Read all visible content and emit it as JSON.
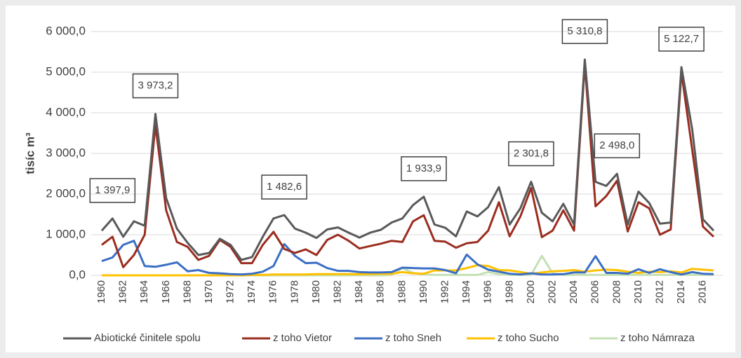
{
  "chart_data": {
    "type": "line",
    "ylabel": "tisíc m³",
    "categories": [
      "1960",
      null,
      "1962",
      null,
      "1964",
      null,
      "1966",
      null,
      "1968",
      null,
      "1970",
      null,
      "1972",
      null,
      "1974",
      null,
      "1976",
      null,
      "1978",
      null,
      "1980",
      null,
      "1982",
      null,
      "1984",
      null,
      "1986",
      null,
      "1988",
      null,
      "1990",
      null,
      "1992",
      null,
      "1994",
      null,
      "1996",
      null,
      "1998",
      null,
      "2000",
      null,
      "2002",
      null,
      "2004",
      null,
      "2006",
      null,
      "2008",
      null,
      "2010",
      null,
      "2012",
      null,
      "2014",
      null,
      "2016",
      null
    ],
    "ylim": [
      0,
      6000
    ],
    "yticks": [
      {
        "value": 0,
        "label": "0,0"
      },
      {
        "value": 1000,
        "label": "1 000,0"
      },
      {
        "value": 2000,
        "label": "2 000,0"
      },
      {
        "value": 3000,
        "label": "3 000,0"
      },
      {
        "value": 4000,
        "label": "4 000,0"
      },
      {
        "value": 5000,
        "label": "5 000,0"
      },
      {
        "value": 6000,
        "label": "6 000,0"
      }
    ],
    "grid": true,
    "legend": "bottom",
    "series": [
      {
        "name": "Abiotické činitele spolu",
        "color": "#595959",
        "values": [
          1100,
          1397.9,
          950,
          1330,
          1220,
          3973.2,
          1900,
          1150,
          800,
          500,
          550,
          900,
          750,
          380,
          450,
          950,
          1400,
          1482.6,
          1150,
          1050,
          920,
          1130,
          1180,
          1050,
          930,
          1050,
          1120,
          1300,
          1400,
          1730,
          1933.9,
          1250,
          1170,
          960,
          1570,
          1450,
          1680,
          2170,
          1250,
          1650,
          2301.8,
          1540,
          1330,
          1760,
          1250,
          5310.8,
          2300,
          2200,
          2498.0,
          1250,
          2060,
          1780,
          1270,
          1300,
          5122.7,
          3600,
          1380,
          1100
        ],
        "value_labels": [
          null,
          "1 397,9",
          null,
          null,
          null,
          "3 973,2",
          null,
          null,
          null,
          null,
          null,
          null,
          null,
          null,
          null,
          null,
          null,
          "1 482,6",
          null,
          null,
          null,
          null,
          null,
          null,
          null,
          null,
          null,
          null,
          null,
          null,
          "1 933,9",
          null,
          null,
          null,
          null,
          null,
          null,
          null,
          null,
          null,
          "2 301,8",
          null,
          null,
          null,
          null,
          "5 310,8",
          null,
          null,
          "2 498,0",
          null,
          null,
          null,
          null,
          null,
          "5 122,7",
          null,
          null,
          null
        ]
      },
      {
        "name": "z toho Vietor",
        "color": "#9b2d1f",
        "values": [
          750,
          950,
          200,
          500,
          1000,
          3700,
          1600,
          820,
          700,
          380,
          480,
          870,
          700,
          300,
          300,
          750,
          1070,
          650,
          550,
          640,
          500,
          870,
          1000,
          850,
          660,
          720,
          780,
          850,
          820,
          1330,
          1480,
          850,
          830,
          680,
          790,
          820,
          1100,
          1800,
          960,
          1450,
          2150,
          940,
          1100,
          1600,
          1100,
          5200,
          1700,
          1950,
          2330,
          1080,
          1800,
          1650,
          1000,
          1130,
          5000,
          3100,
          1200,
          950
        ]
      },
      {
        "name": "z toho Sneh",
        "color": "#3b6fc4",
        "values": [
          350,
          440,
          750,
          850,
          230,
          210,
          260,
          320,
          100,
          130,
          60,
          50,
          30,
          20,
          40,
          90,
          230,
          770,
          480,
          300,
          310,
          180,
          110,
          110,
          80,
          70,
          70,
          80,
          190,
          180,
          170,
          170,
          130,
          50,
          510,
          270,
          140,
          90,
          40,
          20,
          50,
          20,
          20,
          30,
          70,
          70,
          470,
          60,
          60,
          40,
          150,
          60,
          150,
          80,
          20,
          80,
          40,
          30
        ]
      },
      {
        "name": "z toho Sucho",
        "color": "#ffc000",
        "values": [
          0,
          0,
          0,
          0,
          0,
          0,
          0,
          0,
          0,
          0,
          0,
          0,
          0,
          0,
          10,
          10,
          20,
          20,
          20,
          20,
          30,
          30,
          30,
          30,
          30,
          30,
          40,
          40,
          80,
          50,
          40,
          120,
          120,
          120,
          180,
          250,
          230,
          130,
          120,
          80,
          40,
          70,
          100,
          110,
          130,
          90,
          120,
          140,
          130,
          90,
          60,
          90,
          80,
          100,
          70,
          160,
          140,
          120
        ]
      },
      {
        "name": "z toho Námraza",
        "color": "#c5e0b4",
        "values": [
          0,
          0,
          0,
          0,
          0,
          0,
          0,
          0,
          0,
          0,
          0,
          0,
          0,
          0,
          0,
          0,
          0,
          0,
          0,
          0,
          0,
          0,
          0,
          0,
          0,
          0,
          0,
          10,
          180,
          60,
          20,
          10,
          10,
          10,
          10,
          10,
          80,
          30,
          10,
          10,
          10,
          480,
          50,
          10,
          10,
          10,
          10,
          10,
          10,
          10,
          10,
          10,
          10,
          10,
          10,
          10,
          10,
          10
        ]
      }
    ]
  }
}
